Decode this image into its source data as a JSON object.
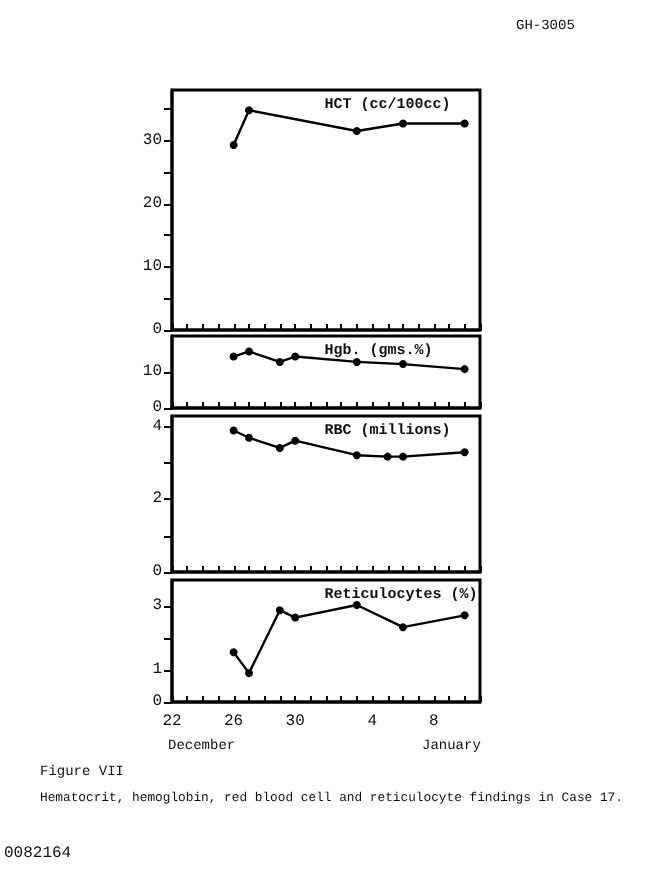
{
  "chart_data": [
    {
      "type": "line",
      "title": "HCT (cc/100cc)",
      "marker": "circle",
      "line_style": "solid",
      "tick_labels": "y",
      "annotations": [
        "GH-3005"
      ],
      "categories": [
        "22",
        null,
        null,
        null,
        "26",
        null,
        null,
        null,
        "30",
        null,
        null,
        null,
        null,
        "4",
        null,
        null,
        null,
        "8",
        null,
        null,
        null
      ],
      "ylim": [
        0,
        38
      ],
      "yticks": [
        0,
        {
          "value": 5,
          "label": null
        },
        10,
        {
          "value": 15,
          "label": null
        },
        20,
        {
          "value": 25,
          "label": null
        },
        30,
        {
          "value": 35,
          "label": null
        }
      ],
      "series": [
        {
          "color": "#000000",
          "values": [
            null,
            null,
            null,
            null,
            29.3,
            34.8,
            null,
            null,
            null,
            null,
            null,
            null,
            31.5,
            null,
            null,
            32.7,
            null,
            null,
            null,
            32.7,
            null
          ]
        }
      ]
    },
    {
      "type": "line",
      "title": "Hgb. (gms.%)",
      "marker": "circle",
      "line_style": "solid",
      "tick_labels": "y",
      "categories": [
        "22",
        null,
        null,
        null,
        "26",
        null,
        null,
        null,
        "30",
        null,
        null,
        null,
        null,
        "4",
        null,
        null,
        null,
        "8",
        null,
        null,
        null
      ],
      "ylim": [
        0,
        20
      ],
      "yticks": [
        0,
        10
      ],
      "series": [
        {
          "color": "#000000",
          "values": [
            null,
            null,
            null,
            null,
            14.3,
            15.7,
            null,
            12.8,
            14.3,
            null,
            null,
            null,
            12.8,
            null,
            null,
            12.2,
            null,
            null,
            null,
            10.8,
            null
          ]
        }
      ]
    },
    {
      "type": "line",
      "title": "RBC (millions)",
      "marker": "circle",
      "line_style": "solid",
      "tick_labels": "y",
      "categories": [
        "22",
        null,
        null,
        null,
        "26",
        null,
        null,
        null,
        "30",
        null,
        null,
        null,
        null,
        "4",
        null,
        null,
        null,
        "8",
        null,
        null,
        null
      ],
      "ylim": [
        0,
        4.3
      ],
      "yticks": [
        0,
        {
          "value": 1,
          "label": null
        },
        2,
        {
          "value": 3,
          "label": null
        },
        4
      ],
      "series": [
        {
          "color": "#000000",
          "values": [
            null,
            null,
            null,
            null,
            3.9,
            3.7,
            null,
            3.42,
            3.62,
            null,
            null,
            null,
            3.22,
            null,
            3.18,
            3.18,
            null,
            null,
            null,
            3.3,
            null
          ]
        }
      ]
    },
    {
      "type": "line",
      "title": "Reticulocytes (%)",
      "marker": "circle",
      "line_style": "solid",
      "annotations": [
        "December",
        "January",
        "Figure VII",
        "Hematocrit, hemoglobin, red blood cell and reticulocyte findings in Case 17.",
        "0082164"
      ],
      "categories": [
        "22",
        null,
        null,
        null,
        "26",
        null,
        null,
        null,
        "30",
        null,
        null,
        null,
        null,
        "4",
        null,
        null,
        null,
        "8",
        null,
        null,
        null
      ],
      "ylim": [
        0,
        3.8
      ],
      "yticks": [
        0,
        1,
        {
          "value": 2,
          "label": null
        },
        3
      ],
      "series": [
        {
          "color": "#000000",
          "values": [
            null,
            null,
            null,
            null,
            1.55,
            0.9,
            null,
            2.86,
            2.63,
            null,
            null,
            null,
            3.02,
            null,
            null,
            2.33,
            null,
            null,
            null,
            2.7,
            null
          ]
        }
      ]
    }
  ]
}
